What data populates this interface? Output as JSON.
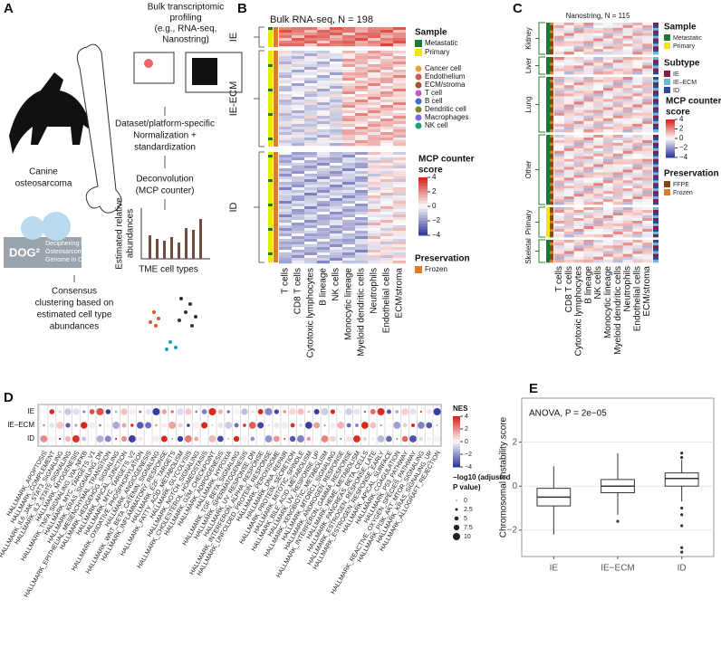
{
  "panels": {
    "A": {
      "letter": "A",
      "profiling": [
        "Bulk transcriptomic",
        "profiling",
        "(e.g., RNA-seq,",
        "Nanostring)"
      ],
      "normalization": [
        "Dataset/platform-specific",
        "Normalization +",
        "standardization"
      ],
      "deconvolution": [
        "Deconvolution",
        "(MCP counter)"
      ],
      "y_label": [
        "Estimated relative",
        "abundances"
      ],
      "x_label": "TME cell types",
      "clustering": [
        "Consensus",
        "clustering based on",
        "estimated cell type",
        "abundances"
      ],
      "cohort": [
        "Canine",
        "osteosarcoma"
      ],
      "logo": "DOG²",
      "logo_text": [
        "Deciphering the",
        "Osteosarcoma",
        "Genome in Dogs"
      ]
    },
    "B": {
      "letter": "B",
      "title": "Bulk RNA-seq, N = 198",
      "groups": [
        "IE",
        "IE-ECM",
        "ID"
      ],
      "columns": [
        "T cells",
        "CD8 T cells",
        "Cytotoxic lymphocytes",
        "B lineage",
        "NK cells",
        "Monocytic lineage",
        "Myeloid dendritic cells",
        "Neutrophils",
        "Endothelial cells",
        "ECM/stroma"
      ],
      "sample_title": "Sample",
      "samples": [
        "Metastatic",
        "Primary"
      ],
      "cells": [
        "Cancer cell",
        "Endothelium",
        "ECM/stroma",
        "T cell",
        "B cell",
        "Dendritic cell",
        "Macrophages",
        "NK cell"
      ],
      "score_title": [
        "MCP counter",
        "score"
      ],
      "score_ticks": [
        4,
        2,
        0,
        {
          "value": -2,
          "label": "−2"
        },
        {
          "value": -4,
          "label": "−4"
        }
      ],
      "preservation_title": "Preservation",
      "preservation": [
        "Frozen"
      ]
    },
    "C": {
      "letter": "C",
      "title": "Nanostring, N = 115",
      "groups": [
        "Kidney",
        "Liver",
        "Lung",
        "Other",
        "Primary",
        "Skeletal"
      ],
      "columns": [
        "T cells",
        "CD8 T cells",
        "Cytotoxic lymphocytes",
        "B lineage",
        "NK cells",
        "Monocytic lineage",
        "Myeloid dendritic cells",
        "Neutrophils",
        "Endothelial cells",
        "ECM/stroma"
      ],
      "sample_title": "Sample",
      "samples": [
        "Metastatic",
        "Primary"
      ],
      "subtype_title": "Subtype",
      "subtypes": [
        "IE",
        "IE–ECM",
        "ID"
      ],
      "score_title": [
        "MCP counter",
        "score"
      ],
      "score_ticks": [
        4,
        2,
        0,
        {
          "value": -2,
          "label": "−2"
        },
        {
          "value": -4,
          "label": "−4"
        }
      ],
      "preservation_title": "Preservation",
      "preservation": [
        "FFPE",
        "Frozen"
      ]
    },
    "D": {
      "letter": "D",
      "rows": [
        "IE",
        "IE–ECM",
        "ID"
      ],
      "pathways": [
        "HALLMARK_APOPTOSIS",
        "HALLMARK_COMPLEMENT",
        "HALLMARK_IL6_JAK_STAT3_SIGNALING",
        "HALLMARK_IL2_STAT5_SIGNALING",
        "HALLMARK_MYOGENESIS",
        "HALLMARK_TNFA_SIGNALING_VIA_NFKB",
        "HALLMARK_MYC_TARGETS_V1",
        "HALLMARK_KRAS_SIGNALING_DN",
        "HALLMARK_EPITHELIAL_MESENCHYMAL_TRANSITION",
        "HALLMARK_HEDGEHOG_SIGNALING",
        "HALLMARK_APICAL_JUNCTION",
        "HALLMARK_MYC_TARGETS_V2",
        "HALLMARK_OXIDATIVE_PHOSPHORYLATION",
        "HALLMARK_ANGIOGENESIS",
        "HALLMARK_WNT_BETA_CATENIN_SIGNALING",
        "HALLMARK_INFLAMMATORY_RESPONSE",
        "HALLMARK_E2F_TARGETS",
        "HALLMARK_FATTY_ACID_METABOLISM",
        "HALLMARK_GLYCOLYSIS",
        "HALLMARK_NOTCH_SIGNALING",
        "HALLMARK_CHOLESTEROL_HOMEOSTASIS",
        "HALLMARK_G2M_CHECKPOINT",
        "HALLMARK_ADIPOGENESIS",
        "HALLMARK_HYPOXIA",
        "HALLMARK_TGF_BETA_SIGNALING",
        "HALLMARK_SPERMATOGENESIS",
        "HALLMARK_UV_RESPONSE_DN",
        "HALLMARK_INTERFERON_ALPHA_RESPONSE",
        "HALLMARK_UNFOLDED_PROTEIN_RESPONSE",
        "HALLMARK_PEROXISOME",
        "HALLMARK_DNA_REPAIR",
        "HALLMARK_PROTEIN_SECRETION",
        "HALLMARK_MITOTIC_SPINDLE",
        "HALLMARK_BILE_ACID_METABOLISM",
        "HALLMARK_UV_RESPONSE_UP",
        "HALLMARK_XENOBIOTIC_METABOLISM",
        "HALLMARK_MTORC1_SIGNALING",
        "HALLMARK_ANDROGEN_RESPONSE",
        "HALLMARK_INTERFERON_GAMMA_RESPONSE",
        "HALLMARK_HEME_METABOLISM",
        "HALLMARK_PANCREAS_BETA_CELLS",
        "HALLMARK_ESTROGEN_RESPONSE_LATE",
        "HALLMARK_ESTROGEN_RESPONSE_EARLY",
        "HALLMARK_APICAL_SURFACE",
        "HALLMARK_COAGULATION",
        "HALLMARK_P53_PATHWAY",
        "HALLMARK_REACTIVE_OXYGEN_SPECIES_PATHWAY",
        "HALLMARK_PI3K_AKT_MTOR_SIGNALING",
        "HALLMARK_KRAS_SIGNALING_UP",
        "HALLMARK_ALLOGRAFT_REJECTION"
      ],
      "nes_title": "NES",
      "nes_ticks": [
        4,
        2,
        0,
        {
          "value": -2,
          "label": "−2"
        },
        {
          "value": -4,
          "label": "−4"
        }
      ],
      "size_title": [
        "−log10 (adjusted",
        "P value)"
      ],
      "size_ticks": [
        0,
        2.5,
        5,
        7.5,
        10
      ]
    },
    "E": {
      "letter": "E"
    }
  },
  "chart_data": {
    "type": "box",
    "title": "ANOVA, P = 2e−05",
    "y_label": "Chromosomal instability score",
    "categories": [
      "IE",
      "IE−ECM",
      "ID"
    ],
    "boxes": [
      {
        "whisker_low": -2.2,
        "q1": -0.9,
        "median": -0.5,
        "q3": -0.1,
        "whisker_high": 0.9,
        "outliers": []
      },
      {
        "whisker_low": -1.3,
        "q1": -0.3,
        "median": 0,
        "q3": 0.3,
        "whisker_high": 1.5,
        "outliers": [
          -1.6
        ]
      },
      {
        "whisker_low": -0.7,
        "q1": 0,
        "median": 0.35,
        "q3": 0.6,
        "whisker_high": 1.2,
        "outliers": [
          1.5,
          1.3,
          -1,
          -1.3,
          -1.8,
          -2.8,
          -3
        ]
      }
    ],
    "ylim": [
      -3.2,
      4
    ],
    "yticks": [
      {
        "value": -2,
        "label": "−2"
      },
      0,
      2
    ],
    "color": "#333333",
    "grid": true
  }
}
